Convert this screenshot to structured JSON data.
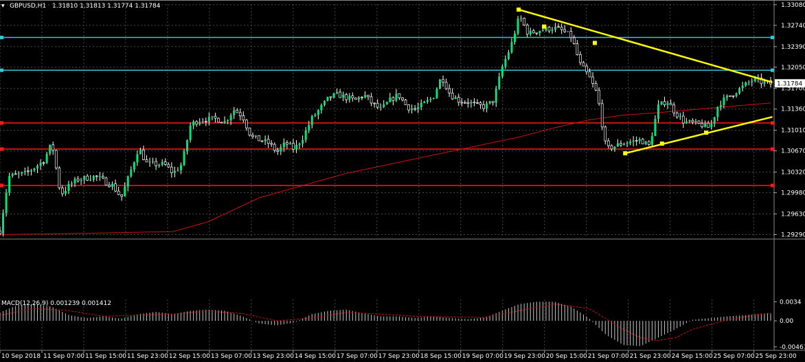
{
  "header": {
    "symbol_label": "GBPUSD,H1",
    "ohlc_label": "1.31810 1.31813 1.31774 1.31784"
  },
  "macd": {
    "label": "MACD(12,26,9) 0.001239 0.001412",
    "axis_labels": [
      "0.0034",
      "0.00",
      "-0.004615"
    ]
  },
  "colors": {
    "background": "#000000",
    "grid": "#4a4a4a",
    "candle": "#00e676",
    "wick": "#ffffff",
    "ma_line": "#d01010",
    "cyan_level": "#33c6d6",
    "red_level": "#ff1a1a",
    "trendline": "#ffff00",
    "histogram": "#c8c8c8",
    "signal": "#d01010"
  },
  "chart_data": {
    "type": "candlestick",
    "title": "",
    "price_axis": {
      "ylim": [
        1.2925,
        1.3309
      ],
      "tick_labels": [
        "1.33080",
        "1.32740",
        "1.32390",
        "1.32050",
        "1.31700",
        "1.31360",
        "1.31010",
        "1.30670",
        "1.30320",
        "1.29980",
        "1.29630",
        "1.29290"
      ]
    },
    "current_price_label": "1.31784",
    "time_axis": {
      "tick_labels": [
        "10 Sep 2018",
        "11 Sep 07:00",
        "11 Sep 15:00",
        "11 Sep 23:00",
        "12 Sep 15:00",
        "13 Sep 07:00",
        "13 Sep 23:00",
        "14 Sep 15:00",
        "17 Sep 07:00",
        "17 Sep 23:00",
        "18 Sep 15:00",
        "19 Sep 07:00",
        "19 Sep 23:00",
        "20 Sep 15:00",
        "21 Sep 07:00",
        "21 Sep 23:00",
        "24 Sep 15:00",
        "25 Sep 07:00",
        "25 Sep 23:00"
      ]
    },
    "horizontal_levels": [
      {
        "price": 1.3254,
        "color": "cyan"
      },
      {
        "price": 1.32,
        "color": "cyan"
      },
      {
        "price": 1.3113,
        "color": "red"
      },
      {
        "price": 1.307,
        "color": "red"
      },
      {
        "price": 1.301,
        "color": "red"
      }
    ],
    "trendlines": [
      {
        "points": [
          [
            0,
            1.33
          ],
          [
            0.1,
            1.3272
          ],
          [
            0.3,
            1.3245
          ],
          [
            1.0,
            1.318
          ]
        ]
      },
      {
        "points": [
          [
            0,
            1.3063
          ],
          [
            0.25,
            1.3079
          ],
          [
            0.55,
            1.3097
          ],
          [
            1.0,
            1.3123
          ]
        ]
      }
    ],
    "price_path": [
      [
        0,
        1.2935
      ],
      [
        0.5,
        1.3025
      ],
      [
        1.5,
        1.303
      ],
      [
        2.5,
        1.305
      ],
      [
        3,
        1.308
      ],
      [
        3.5,
        1.2995
      ],
      [
        4,
        1.301
      ],
      [
        4.5,
        1.302
      ],
      [
        5.5,
        1.3025
      ],
      [
        6.5,
        1.301
      ],
      [
        7,
        1.299
      ],
      [
        7.5,
        1.303
      ],
      [
        8,
        1.3072
      ],
      [
        8.5,
        1.3045
      ],
      [
        9.5,
        1.3045
      ],
      [
        10,
        1.303
      ],
      [
        10.5,
        1.3045
      ],
      [
        11,
        1.311
      ],
      [
        11.5,
        1.3118
      ],
      [
        12.5,
        1.312
      ],
      [
        13,
        1.3115
      ],
      [
        13.5,
        1.3135
      ],
      [
        14,
        1.3125
      ],
      [
        14.5,
        1.309
      ],
      [
        15.5,
        1.308
      ],
      [
        16,
        1.3065
      ],
      [
        16.5,
        1.308
      ],
      [
        17,
        1.307
      ],
      [
        17.5,
        1.309
      ],
      [
        18,
        1.312
      ],
      [
        19,
        1.3155
      ],
      [
        19.5,
        1.316
      ],
      [
        20.5,
        1.315
      ],
      [
        21,
        1.316
      ],
      [
        21.5,
        1.3145
      ],
      [
        22,
        1.3135
      ],
      [
        22.5,
        1.315
      ],
      [
        23,
        1.316
      ],
      [
        23.5,
        1.314
      ],
      [
        24,
        1.3135
      ],
      [
        24.5,
        1.3145
      ],
      [
        25,
        1.3155
      ],
      [
        25.5,
        1.319
      ],
      [
        26,
        1.316
      ],
      [
        26.5,
        1.315
      ],
      [
        27,
        1.3148
      ],
      [
        27.5,
        1.3142
      ],
      [
        28,
        1.314
      ],
      [
        28.5,
        1.315
      ],
      [
        29,
        1.3205
      ],
      [
        29.5,
        1.324
      ],
      [
        30,
        1.329
      ],
      [
        30.5,
        1.326
      ],
      [
        31,
        1.3265
      ],
      [
        32,
        1.327
      ],
      [
        32.5,
        1.3265
      ],
      [
        33,
        1.3255
      ],
      [
        33.5,
        1.321
      ],
      [
        34,
        1.319
      ],
      [
        34.5,
        1.316
      ],
      [
        35,
        1.307
      ],
      [
        35.5,
        1.3075
      ],
      [
        36,
        1.308
      ],
      [
        37,
        1.3085
      ],
      [
        37.5,
        1.3075
      ],
      [
        38,
        1.314
      ],
      [
        38.5,
        1.315
      ],
      [
        39,
        1.313
      ],
      [
        39.5,
        1.3115
      ],
      [
        40.5,
        1.311
      ],
      [
        41,
        1.3105
      ],
      [
        41.5,
        1.3145
      ],
      [
        42,
        1.3155
      ],
      [
        42.5,
        1.3165
      ],
      [
        43,
        1.3175
      ],
      [
        43.5,
        1.3185
      ],
      [
        44,
        1.318
      ],
      [
        44.5,
        1.3178
      ]
    ],
    "moving_average": [
      [
        0,
        1.2929
      ],
      [
        5,
        1.2931
      ],
      [
        10,
        1.2934
      ],
      [
        12,
        1.295
      ],
      [
        15,
        1.299
      ],
      [
        20,
        1.303
      ],
      [
        25,
        1.306
      ],
      [
        30,
        1.309
      ],
      [
        32,
        1.3105
      ],
      [
        34,
        1.3118
      ],
      [
        36,
        1.3126
      ],
      [
        38,
        1.313
      ],
      [
        40,
        1.3135
      ],
      [
        42,
        1.314
      ],
      [
        44.5,
        1.3146
      ]
    ],
    "macd_histogram": [
      [
        0,
        0.0015
      ],
      [
        1,
        0.0028
      ],
      [
        2,
        0.003
      ],
      [
        3,
        0.0025
      ],
      [
        4,
        0.001
      ],
      [
        5,
        0.0005
      ],
      [
        6,
        0.0008
      ],
      [
        7,
        0.0004
      ],
      [
        8,
        0.0012
      ],
      [
        9,
        0.0016
      ],
      [
        10,
        0.0012
      ],
      [
        11,
        0.0018
      ],
      [
        12,
        0.002
      ],
      [
        13,
        0.0018
      ],
      [
        14,
        0.0008
      ],
      [
        15,
        -0.0005
      ],
      [
        16,
        -0.0008
      ],
      [
        17,
        -0.0003
      ],
      [
        18,
        0.0012
      ],
      [
        19,
        0.0018
      ],
      [
        20,
        0.002
      ],
      [
        21,
        0.0013
      ],
      [
        22,
        0.0008
      ],
      [
        23,
        0.0008
      ],
      [
        24,
        0.0005
      ],
      [
        25,
        0.0008
      ],
      [
        26,
        0.0005
      ],
      [
        27,
        0.0003
      ],
      [
        28,
        0.0006
      ],
      [
        29,
        0.0018
      ],
      [
        30,
        0.003
      ],
      [
        31,
        0.0034
      ],
      [
        32,
        0.0034
      ],
      [
        33,
        0.0025
      ],
      [
        34,
        0.0005
      ],
      [
        35,
        -0.0025
      ],
      [
        36,
        -0.0043
      ],
      [
        37,
        -0.0045
      ],
      [
        38,
        -0.003
      ],
      [
        39,
        -0.0015
      ],
      [
        40,
        0.0002
      ],
      [
        41,
        0.0005
      ],
      [
        42,
        0.0008
      ],
      [
        43,
        0.001
      ],
      [
        44,
        0.0013
      ],
      [
        44.5,
        0.0013
      ]
    ],
    "macd_signal": [
      [
        0,
        0.001
      ],
      [
        2,
        0.0022
      ],
      [
        4,
        0.0018
      ],
      [
        6,
        0.0008
      ],
      [
        8,
        0.001
      ],
      [
        10,
        0.0012
      ],
      [
        12,
        0.0017
      ],
      [
        14,
        0.0013
      ],
      [
        16,
        0.0
      ],
      [
        18,
        0.0005
      ],
      [
        20,
        0.0015
      ],
      [
        22,
        0.0012
      ],
      [
        24,
        0.0008
      ],
      [
        26,
        0.0007
      ],
      [
        28,
        0.0006
      ],
      [
        30,
        0.0018
      ],
      [
        32,
        0.003
      ],
      [
        34,
        0.0022
      ],
      [
        36,
        -0.0015
      ],
      [
        37,
        -0.003
      ],
      [
        38,
        -0.0035
      ],
      [
        39,
        -0.003
      ],
      [
        40,
        -0.0015
      ],
      [
        42,
        0.0002
      ],
      [
        44,
        0.0012
      ],
      [
        44.5,
        0.0014
      ]
    ]
  }
}
